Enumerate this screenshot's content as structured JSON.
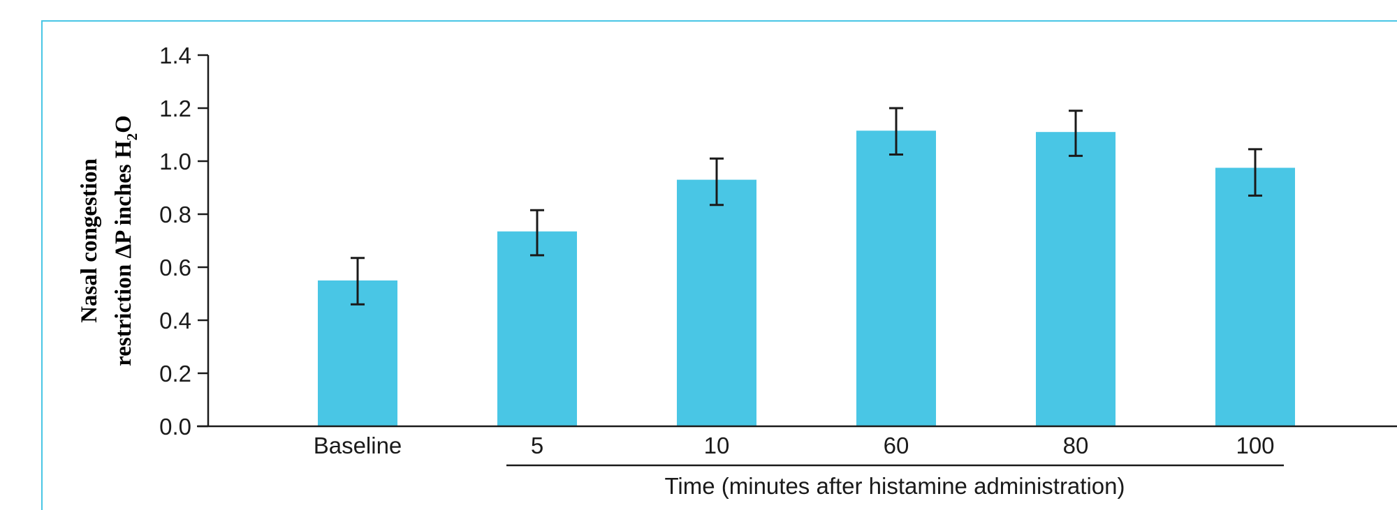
{
  "chart_data": {
    "type": "bar",
    "categories": [
      "Baseline",
      "5",
      "10",
      "60",
      "80",
      "100"
    ],
    "series": [
      {
        "values": [
          0.55,
          0.735,
          0.93,
          1.115,
          1.11,
          0.975
        ],
        "error_low": [
          0.46,
          0.645,
          0.835,
          1.025,
          1.02,
          0.87
        ],
        "error_high": [
          0.635,
          0.815,
          1.01,
          1.2,
          1.19,
          1.045
        ]
      }
    ],
    "xlabel": "Time (minutes after histamine administration)",
    "ylabel_line1": "Nasal congestion",
    "ylabel_line2_main": "restriction ΔP inches H",
    "ylabel_line2_sub": "2",
    "ylabel_line2_end": "O",
    "ylim": [
      0,
      1.4
    ],
    "yticks": [
      "0.0",
      "0.2",
      "0.4",
      "0.6",
      "0.8",
      "1.0",
      "1.2",
      "1.4"
    ],
    "grid": false,
    "bar_color": "#49c6e5",
    "error_bar_color": "#1a1a1a"
  }
}
